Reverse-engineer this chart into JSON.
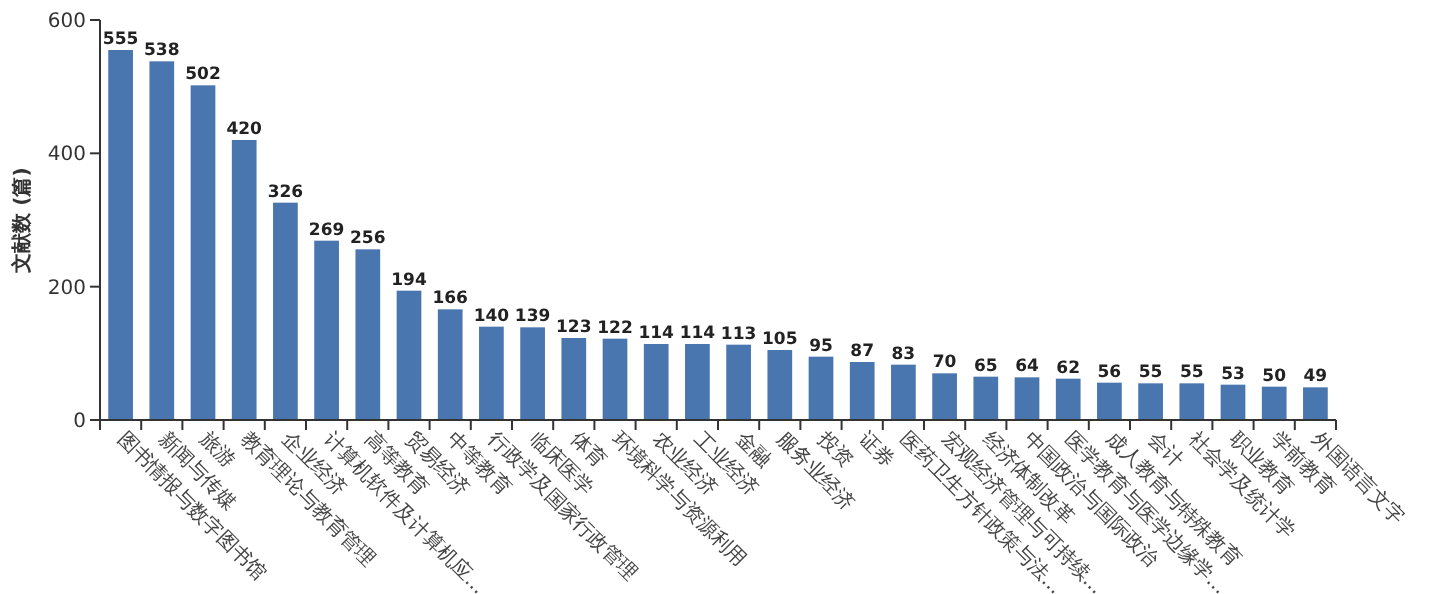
{
  "chart_data": {
    "type": "bar",
    "ylabel": "文献数 (篇)",
    "color": "#4a76b0",
    "ylim": [
      0,
      600
    ],
    "yticks": [
      0,
      200,
      400,
      600
    ],
    "data_labels": true,
    "categories": [
      "图书情报与数字图书馆",
      "新闻与传媒",
      "旅游",
      "教育理论与教育管理",
      "企业经济",
      "计算机软件及计算机应...",
      "高等教育",
      "贸易经济",
      "中等教育",
      "行政学及国家行政管理",
      "临床医学",
      "体育",
      "环境科学与资源利用",
      "农业经济",
      "工业经济",
      "金融",
      "服务业经济",
      "投资",
      "证券",
      "医药卫生方针政策与法...",
      "宏观经济管理与可持续...",
      "经济体制改革",
      "中国政治与国际政治",
      "医学教育与医学边缘学...",
      "成人教育与特殊教育",
      "会计",
      "社会学及统计学",
      "职业教育",
      "学前教育",
      "外国语言文字"
    ],
    "values": [
      555,
      538,
      502,
      420,
      326,
      269,
      256,
      194,
      166,
      140,
      139,
      123,
      122,
      114,
      114,
      113,
      105,
      95,
      87,
      83,
      70,
      65,
      64,
      62,
      56,
      55,
      55,
      53,
      50,
      49
    ]
  }
}
